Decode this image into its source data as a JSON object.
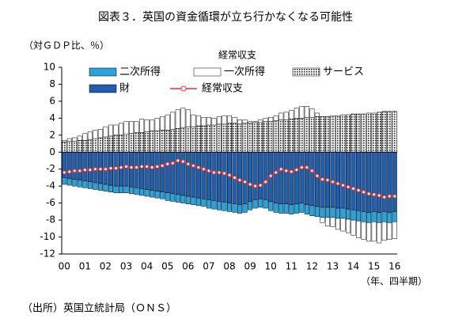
{
  "chart_data": {
    "type": "bar",
    "title": "図表３．英国の資金循環が立ち行かなくなる可能性",
    "y_label": "（対ＧＤＰ比、％）",
    "x_label": "（年、四半期）",
    "source": "（出所）英国立統計局（ＯＮＳ）",
    "legend_title": "経常収支",
    "categories": [
      "00",
      null,
      null,
      null,
      "01",
      null,
      null,
      null,
      "02",
      null,
      null,
      null,
      "03",
      null,
      null,
      null,
      "04",
      null,
      null,
      null,
      "05",
      null,
      null,
      null,
      "06",
      null,
      null,
      null,
      "07",
      null,
      null,
      null,
      "08",
      null,
      null,
      null,
      "09",
      null,
      null,
      null,
      "10",
      null,
      null,
      null,
      "11",
      null,
      null,
      null,
      "12",
      null,
      null,
      null,
      "13",
      null,
      null,
      null,
      "14",
      null,
      null,
      null,
      "15",
      null,
      null,
      null,
      "16"
    ],
    "ylim": [
      -12,
      10
    ],
    "yticks": [
      10,
      8,
      6,
      4,
      2,
      0,
      -2,
      -4,
      -6,
      -8,
      -10,
      -12
    ],
    "series": [
      {
        "name": "二次所得",
        "color": "#29a3dc",
        "values": [
          -0.8,
          -0.8,
          -0.8,
          -0.8,
          -0.8,
          -0.8,
          -0.8,
          -0.8,
          -0.8,
          -0.8,
          -0.8,
          -0.8,
          -0.8,
          -0.8,
          -0.8,
          -0.8,
          -0.8,
          -0.8,
          -0.8,
          -0.8,
          -0.9,
          -0.9,
          -0.9,
          -0.9,
          -0.9,
          -0.9,
          -0.9,
          -0.9,
          -1.0,
          -1.0,
          -1.0,
          -1.0,
          -1.0,
          -1.0,
          -1.0,
          -1.0,
          -1.0,
          -1.0,
          -1.0,
          -1.0,
          -1.1,
          -1.1,
          -1.1,
          -1.1,
          -1.1,
          -1.1,
          -1.1,
          -1.1,
          -1.2,
          -1.2,
          -1.2,
          -1.2,
          -1.2,
          -1.2,
          -1.2,
          -1.2,
          -1.2,
          -1.2,
          -1.2,
          -1.2,
          -1.2,
          -1.2,
          -1.2,
          -1.2,
          -1.2
        ]
      },
      {
        "name": "一次所得",
        "color": "#ffffff",
        "values": [
          0.2,
          0.3,
          0.4,
          0.5,
          0.8,
          0.9,
          1.0,
          1.0,
          1.2,
          1.3,
          1.2,
          1.4,
          1.5,
          1.4,
          1.3,
          1.6,
          1.4,
          1.3,
          1.5,
          1.6,
          1.8,
          2.0,
          2.2,
          2.3,
          2.0,
          1.4,
          1.2,
          1.0,
          0.9,
          0.8,
          0.9,
          1.0,
          0.9,
          0.7,
          0.5,
          0.4,
          0.2,
          0.1,
          0.3,
          0.4,
          0.5,
          0.6,
          0.8,
          0.9,
          1.0,
          1.2,
          1.4,
          1.3,
          1.0,
          0.4,
          -0.6,
          -1.0,
          -1.1,
          -1.3,
          -1.5,
          -1.6,
          -1.8,
          -2.0,
          -2.1,
          -2.2,
          -2.3,
          -2.4,
          -2.2,
          -2.0,
          -2.0
        ]
      },
      {
        "name": "サービス",
        "color": "#222222",
        "pattern": "dots",
        "values": [
          1.2,
          1.3,
          1.3,
          1.4,
          1.4,
          1.5,
          1.6,
          1.7,
          1.8,
          1.9,
          2.0,
          2.0,
          2.1,
          2.2,
          2.3,
          2.3,
          2.4,
          2.5,
          2.5,
          2.6,
          2.6,
          2.7,
          2.8,
          2.9,
          3.0,
          3.0,
          3.1,
          3.1,
          3.2,
          3.2,
          3.3,
          3.3,
          3.4,
          3.4,
          3.3,
          3.4,
          3.4,
          3.5,
          3.5,
          3.6,
          3.6,
          3.7,
          3.8,
          3.8,
          3.9,
          4.0,
          4.0,
          4.1,
          4.1,
          4.2,
          4.2,
          4.2,
          4.3,
          4.3,
          4.4,
          4.4,
          4.5,
          4.5,
          4.5,
          4.6,
          4.6,
          4.7,
          4.8,
          4.8,
          4.8
        ]
      },
      {
        "name": "財",
        "color": "#1f5fae",
        "values": [
          -3.0,
          -3.1,
          -3.2,
          -3.3,
          -3.4,
          -3.5,
          -3.6,
          -3.7,
          -3.8,
          -3.9,
          -4.0,
          -4.0,
          -4.0,
          -4.1,
          -4.2,
          -4.3,
          -4.4,
          -4.5,
          -4.6,
          -4.7,
          -4.8,
          -4.9,
          -5.0,
          -5.1,
          -5.2,
          -5.3,
          -5.4,
          -5.5,
          -5.6,
          -5.7,
          -5.8,
          -5.9,
          -6.0,
          -6.1,
          -6.2,
          -6.1,
          -5.8,
          -5.6,
          -5.5,
          -5.6,
          -5.8,
          -6.0,
          -6.1,
          -6.1,
          -6.2,
          -6.1,
          -6.0,
          -6.2,
          -6.3,
          -6.4,
          -6.5,
          -6.5,
          -6.5,
          -6.6,
          -6.6,
          -6.7,
          -6.8,
          -6.9,
          -7.0,
          -7.1,
          -7.0,
          -7.1,
          -7.0,
          -7.1,
          -7.0
        ]
      },
      {
        "name": "経常収支",
        "type": "line",
        "color": "#e8303a",
        "values": [
          -2.4,
          -2.3,
          -2.2,
          -2.2,
          -2.1,
          -2.1,
          -2.0,
          -2.0,
          -2.0,
          -1.9,
          -1.9,
          -1.8,
          -1.7,
          -1.8,
          -1.8,
          -1.7,
          -1.7,
          -1.8,
          -1.7,
          -1.6,
          -1.4,
          -1.3,
          -1.0,
          -1.1,
          -1.4,
          -1.6,
          -1.8,
          -2.0,
          -2.2,
          -2.4,
          -2.4,
          -2.5,
          -2.7,
          -3.0,
          -3.3,
          -3.5,
          -3.8,
          -4.0,
          -3.9,
          -3.5,
          -2.8,
          -2.4,
          -2.0,
          -2.2,
          -2.3,
          -2.1,
          -1.8,
          -1.8,
          -2.2,
          -2.8,
          -3.2,
          -3.3,
          -3.5,
          -3.7,
          -3.9,
          -4.1,
          -4.3,
          -4.5,
          -4.7,
          -4.9,
          -5.0,
          -5.1,
          -5.3,
          -5.2,
          -5.2
        ]
      }
    ]
  }
}
